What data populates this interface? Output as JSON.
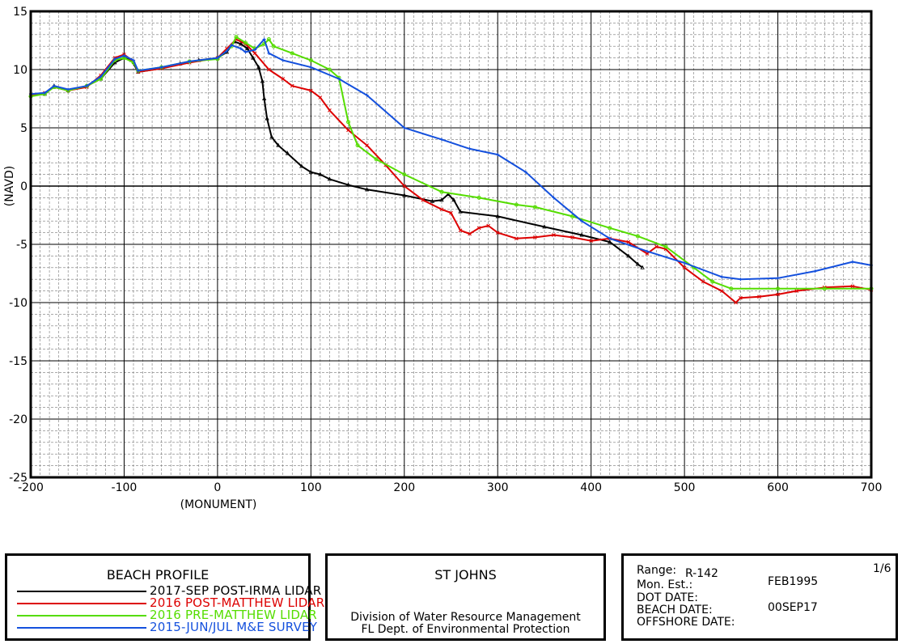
{
  "chart_data": {
    "type": "line",
    "xlabel": "(MONUMENT)",
    "ylabel": "(NAVD)",
    "xlim": [
      -200,
      700
    ],
    "ylim": [
      -25,
      15
    ],
    "xticks": [
      -200,
      -100,
      0,
      100,
      200,
      300,
      400,
      500,
      600,
      700
    ],
    "xtick_labels": [
      "-200",
      "-100",
      "0",
      "100",
      "200",
      "300",
      "400",
      "500",
      "600",
      "700"
    ],
    "yticks": [
      15,
      10,
      5,
      0,
      -5,
      -10,
      -15,
      -20,
      -25
    ],
    "ytick_labels": [
      "15",
      "10",
      "5",
      "0",
      "-5",
      "-10",
      "-15",
      "-20",
      "-25"
    ],
    "grid": true,
    "series": [
      {
        "name": "2017-SEP POST-IRMA LIDAR",
        "color": "#000000",
        "marker": "triangle",
        "points": [
          [
            -200,
            7.8
          ],
          [
            -185,
            7.9
          ],
          [
            -175,
            8.6
          ],
          [
            -160,
            8.2
          ],
          [
            -140,
            8.6
          ],
          [
            -125,
            9.2
          ],
          [
            -110,
            10.6
          ],
          [
            -100,
            11.0
          ],
          [
            -92,
            10.8
          ],
          [
            -85,
            9.8
          ],
          [
            -60,
            10.1
          ],
          [
            -40,
            10.5
          ],
          [
            -20,
            10.8
          ],
          [
            0,
            11.0
          ],
          [
            10,
            11.5
          ],
          [
            18,
            12.4
          ],
          [
            25,
            12.2
          ],
          [
            32,
            11.8
          ],
          [
            38,
            11.0
          ],
          [
            44,
            10.2
          ],
          [
            48,
            9.0
          ],
          [
            50,
            7.5
          ],
          [
            53,
            5.8
          ],
          [
            58,
            4.2
          ],
          [
            65,
            3.5
          ],
          [
            75,
            2.8
          ],
          [
            90,
            1.7
          ],
          [
            100,
            1.2
          ],
          [
            110,
            1.0
          ],
          [
            120,
            0.6
          ],
          [
            140,
            0.1
          ],
          [
            160,
            -0.3
          ],
          [
            200,
            -0.8
          ],
          [
            230,
            -1.3
          ],
          [
            240,
            -1.2
          ],
          [
            247,
            -0.7
          ],
          [
            253,
            -1.2
          ],
          [
            260,
            -2.2
          ],
          [
            300,
            -2.6
          ],
          [
            350,
            -3.5
          ],
          [
            390,
            -4.2
          ],
          [
            420,
            -4.8
          ],
          [
            440,
            -6.0
          ],
          [
            450,
            -6.7
          ],
          [
            455,
            -7.0
          ]
        ]
      },
      {
        "name": "2016 POST-MATTHEW LIDAR",
        "color": "#dd0000",
        "marker": "x",
        "points": [
          [
            -200,
            7.8
          ],
          [
            -185,
            8.0
          ],
          [
            -175,
            8.5
          ],
          [
            -160,
            8.2
          ],
          [
            -140,
            8.5
          ],
          [
            -125,
            9.5
          ],
          [
            -110,
            11.0
          ],
          [
            -100,
            11.3
          ],
          [
            -90,
            10.7
          ],
          [
            -85,
            9.8
          ],
          [
            -60,
            10.1
          ],
          [
            -30,
            10.6
          ],
          [
            0,
            11.0
          ],
          [
            10,
            11.8
          ],
          [
            20,
            12.6
          ],
          [
            30,
            12.2
          ],
          [
            40,
            11.4
          ],
          [
            55,
            10.0
          ],
          [
            70,
            9.2
          ],
          [
            80,
            8.6
          ],
          [
            100,
            8.2
          ],
          [
            110,
            7.6
          ],
          [
            120,
            6.5
          ],
          [
            140,
            4.8
          ],
          [
            160,
            3.5
          ],
          [
            180,
            1.8
          ],
          [
            200,
            0.0
          ],
          [
            220,
            -1.2
          ],
          [
            240,
            -2.0
          ],
          [
            250,
            -2.3
          ],
          [
            260,
            -3.8
          ],
          [
            270,
            -4.1
          ],
          [
            280,
            -3.6
          ],
          [
            290,
            -3.4
          ],
          [
            300,
            -4.0
          ],
          [
            320,
            -4.5
          ],
          [
            340,
            -4.4
          ],
          [
            360,
            -4.2
          ],
          [
            380,
            -4.4
          ],
          [
            400,
            -4.7
          ],
          [
            420,
            -4.5
          ],
          [
            440,
            -4.8
          ],
          [
            460,
            -5.8
          ],
          [
            470,
            -5.2
          ],
          [
            480,
            -5.4
          ],
          [
            500,
            -7.0
          ],
          [
            520,
            -8.2
          ],
          [
            540,
            -9.0
          ],
          [
            555,
            -10.0
          ],
          [
            560,
            -9.6
          ],
          [
            580,
            -9.5
          ],
          [
            600,
            -9.3
          ],
          [
            620,
            -9.0
          ],
          [
            650,
            -8.7
          ],
          [
            680,
            -8.6
          ],
          [
            700,
            -8.9
          ]
        ]
      },
      {
        "name": "2016 PRE-MATTHEW LIDAR",
        "color": "#55dd00",
        "marker": "circle",
        "points": [
          [
            -200,
            7.7
          ],
          [
            -185,
            7.9
          ],
          [
            -175,
            8.5
          ],
          [
            -160,
            8.2
          ],
          [
            -140,
            8.6
          ],
          [
            -125,
            9.2
          ],
          [
            -110,
            10.8
          ],
          [
            -100,
            11.0
          ],
          [
            -90,
            10.6
          ],
          [
            -85,
            9.9
          ],
          [
            -60,
            10.2
          ],
          [
            -30,
            10.7
          ],
          [
            0,
            10.9
          ],
          [
            15,
            12.0
          ],
          [
            20,
            12.8
          ],
          [
            30,
            12.3
          ],
          [
            40,
            11.8
          ],
          [
            50,
            12.2
          ],
          [
            55,
            12.6
          ],
          [
            60,
            12.0
          ],
          [
            80,
            11.4
          ],
          [
            100,
            10.8
          ],
          [
            120,
            10.0
          ],
          [
            130,
            9.3
          ],
          [
            140,
            5.5
          ],
          [
            150,
            3.5
          ],
          [
            170,
            2.3
          ],
          [
            200,
            1.0
          ],
          [
            240,
            -0.5
          ],
          [
            280,
            -1.0
          ],
          [
            320,
            -1.6
          ],
          [
            340,
            -1.8
          ],
          [
            380,
            -2.6
          ],
          [
            420,
            -3.6
          ],
          [
            450,
            -4.3
          ],
          [
            480,
            -5.2
          ],
          [
            510,
            -7.0
          ],
          [
            530,
            -8.2
          ],
          [
            550,
            -8.8
          ],
          [
            600,
            -8.8
          ],
          [
            650,
            -8.8
          ],
          [
            700,
            -8.8
          ]
        ]
      },
      {
        "name": "2015-JUN/JUL M&E SURVEY",
        "color": "#1450dd",
        "marker": "plus",
        "points": [
          [
            -200,
            7.9
          ],
          [
            -185,
            8.0
          ],
          [
            -175,
            8.6
          ],
          [
            -160,
            8.3
          ],
          [
            -140,
            8.6
          ],
          [
            -125,
            9.4
          ],
          [
            -110,
            10.9
          ],
          [
            -100,
            11.2
          ],
          [
            -90,
            10.8
          ],
          [
            -85,
            9.9
          ],
          [
            -60,
            10.2
          ],
          [
            -30,
            10.7
          ],
          [
            0,
            11.0
          ],
          [
            10,
            11.6
          ],
          [
            15,
            12.1
          ],
          [
            25,
            11.8
          ],
          [
            30,
            11.5
          ],
          [
            40,
            11.7
          ],
          [
            50,
            12.6
          ],
          [
            55,
            11.4
          ],
          [
            70,
            10.8
          ],
          [
            100,
            10.2
          ],
          [
            130,
            9.2
          ],
          [
            160,
            7.8
          ],
          [
            200,
            5.0
          ],
          [
            240,
            4.0
          ],
          [
            270,
            3.2
          ],
          [
            300,
            2.7
          ],
          [
            330,
            1.2
          ],
          [
            360,
            -1.0
          ],
          [
            390,
            -3.0
          ],
          [
            420,
            -4.5
          ],
          [
            460,
            -5.6
          ],
          [
            500,
            -6.6
          ],
          [
            540,
            -7.8
          ],
          [
            560,
            -8.0
          ],
          [
            600,
            -7.9
          ],
          [
            640,
            -7.3
          ],
          [
            680,
            -6.5
          ],
          [
            700,
            -6.8
          ]
        ]
      }
    ]
  },
  "legend": {
    "title": "BEACH PROFILE",
    "items": [
      {
        "label": "2017-SEP POST-IRMA LIDAR",
        "color": "#000000"
      },
      {
        "label": "2016 POST-MATTHEW LIDAR",
        "color": "#dd0000"
      },
      {
        "label": "2016 PRE-MATTHEW LIDAR",
        "color": "#55dd00"
      },
      {
        "label": "2015-JUN/JUL M&E SURVEY",
        "color": "#1450dd"
      }
    ]
  },
  "agency": {
    "county": "ST JOHNS",
    "line1": "Division of Water Resource Management",
    "line2": "FL Dept. of Environmental Protection"
  },
  "info": {
    "range_label": "Range:",
    "range_value": "R-142",
    "page": "1/6",
    "mon_est_label": "Mon. Est.:",
    "mon_est_value": "FEB1995",
    "dot_date_label": "DOT DATE:",
    "beach_date_label": "BEACH DATE:",
    "beach_date_value": "00SEP17",
    "offshore_date_label": "OFFSHORE DATE:"
  }
}
